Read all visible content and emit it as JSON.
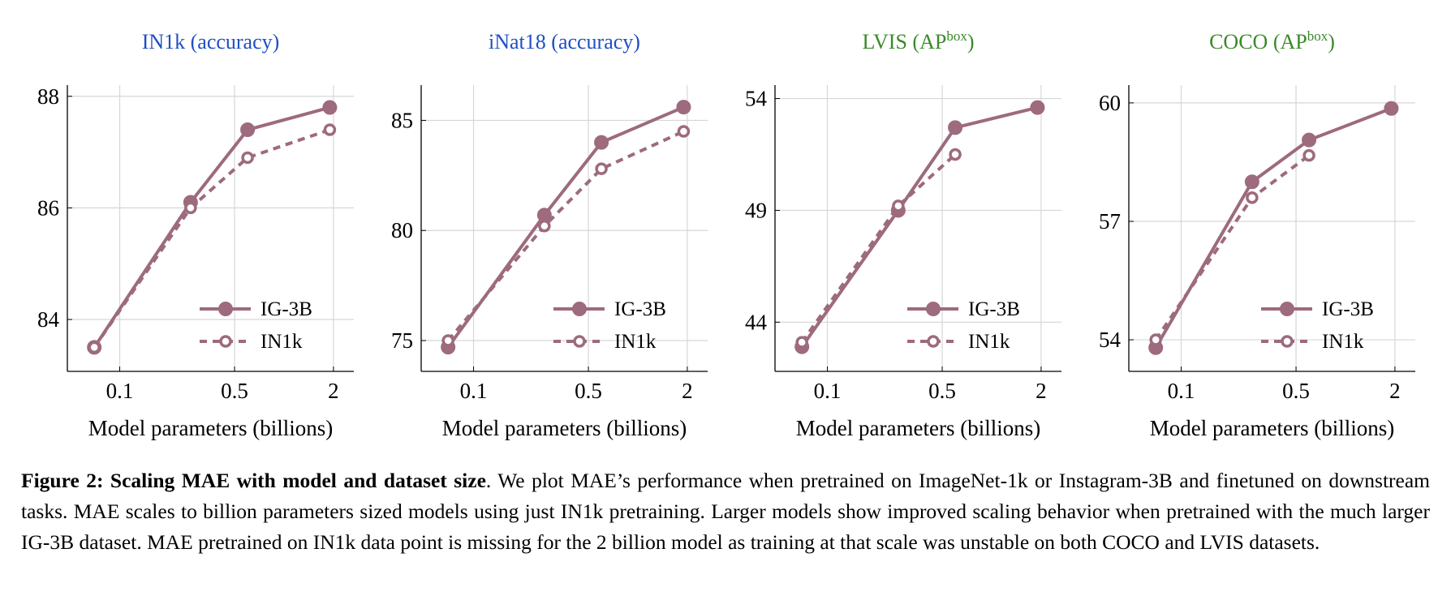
{
  "chart_data": [
    {
      "type": "line",
      "title": "IN1k (accuracy)",
      "title_color": "#1f4fc4",
      "x_label": "Model parameters (billions)",
      "xscale": "log",
      "x": [
        0.07,
        0.27,
        0.6,
        1.9
      ],
      "xlim": [
        0.048,
        2.66
      ],
      "xticks": [
        0.1,
        0.5,
        2
      ],
      "ylim": [
        83.07,
        88.2
      ],
      "yticks": [
        84,
        86,
        88
      ],
      "grid": true,
      "legend": "lower right",
      "series": [
        {
          "name": "IG-3B",
          "color": "#9d6a7e",
          "linestyle": "solid",
          "marker": "filled",
          "values": [
            83.5,
            86.1,
            87.4,
            87.8
          ]
        },
        {
          "name": "IN1k",
          "color": "#9d6a7e",
          "linestyle": "dashed",
          "marker": "open",
          "values": [
            83.5,
            86.0,
            86.9,
            87.4
          ]
        }
      ]
    },
    {
      "type": "line",
      "title": "iNat18 (accuracy)",
      "title_color": "#1f4fc4",
      "x_label": "Model parameters (billions)",
      "xscale": "log",
      "x": [
        0.07,
        0.27,
        0.6,
        1.9
      ],
      "xlim": [
        0.048,
        2.66
      ],
      "xticks": [
        0.1,
        0.5,
        2
      ],
      "ylim": [
        73.6,
        86.6
      ],
      "yticks": [
        75,
        80,
        85
      ],
      "grid": true,
      "legend": "lower right",
      "series": [
        {
          "name": "IG-3B",
          "color": "#9d6a7e",
          "linestyle": "solid",
          "marker": "filled",
          "values": [
            74.7,
            80.7,
            84.0,
            85.6
          ]
        },
        {
          "name": "IN1k",
          "color": "#9d6a7e",
          "linestyle": "dashed",
          "marker": "open",
          "values": [
            75.0,
            80.2,
            82.8,
            84.5
          ]
        }
      ]
    },
    {
      "type": "line",
      "title": "LVIS (AP",
      "title_superscript": "box",
      "title_suffix": ")",
      "title_color": "#3a8a2a",
      "x_label": "Model parameters (billions)",
      "xscale": "log",
      "x": [
        0.07,
        0.27,
        0.6,
        1.9
      ],
      "xlim": [
        0.048,
        2.66
      ],
      "xticks": [
        0.1,
        0.5,
        2
      ],
      "ylim": [
        41.8,
        54.6
      ],
      "yticks": [
        44,
        49,
        54
      ],
      "grid": true,
      "legend": "lower right",
      "series": [
        {
          "name": "IG-3B",
          "color": "#9d6a7e",
          "linestyle": "solid",
          "marker": "filled",
          "values": [
            42.9,
            49.0,
            52.7,
            53.6
          ]
        },
        {
          "name": "IN1k",
          "color": "#9d6a7e",
          "linestyle": "dashed",
          "marker": "open",
          "values": [
            43.1,
            49.2,
            51.5,
            null
          ]
        }
      ]
    },
    {
      "type": "line",
      "title": "COCO (AP",
      "title_superscript": "box",
      "title_suffix": ")",
      "title_color": "#3a8a2a",
      "x_label": "Model parameters (billions)",
      "xscale": "log",
      "x": [
        0.07,
        0.27,
        0.6,
        1.9
      ],
      "xlim": [
        0.048,
        2.66
      ],
      "xticks": [
        0.1,
        0.5,
        2
      ],
      "ylim": [
        53.2,
        60.45
      ],
      "yticks": [
        54,
        57,
        60
      ],
      "grid": true,
      "legend": "lower right",
      "series": [
        {
          "name": "IG-3B",
          "color": "#9d6a7e",
          "linestyle": "solid",
          "marker": "filled",
          "values": [
            53.8,
            58.0,
            59.06,
            59.86
          ]
        },
        {
          "name": "IN1k",
          "color": "#9d6a7e",
          "linestyle": "dashed",
          "marker": "open",
          "values": [
            54.0,
            57.6,
            58.67,
            null
          ]
        }
      ]
    }
  ],
  "caption": {
    "label": "Figure 2:",
    "title": "Scaling MAE with model and dataset size",
    "text": ". We plot MAE’s performance when pretrained on ImageNet-1k or Instagram-3B and finetuned on downstream tasks. MAE scales to billion parameters sized models using just IN1k pretraining. Larger models show improved scaling behavior when pretrained with the much larger IG-3B dataset. MAE pretrained on IN1k data point is missing for the 2 billion model as training at that scale was unstable on both COCO and LVIS datasets."
  }
}
